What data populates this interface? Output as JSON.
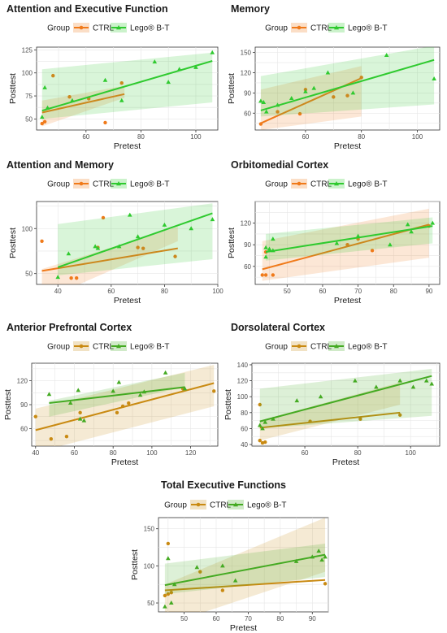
{
  "legend_title": "Group",
  "chart_data": [
    {
      "type": "scatter",
      "title": "Attention and Executive Function",
      "xlabel": "Pretest",
      "ylabel": "Posttest",
      "xlim": [
        42,
        108
      ],
      "ylim": [
        38,
        128
      ],
      "xticks": [
        60,
        80,
        100
      ],
      "yticks": [
        50,
        75,
        100,
        125
      ],
      "grid": true,
      "legend_position": "top",
      "series": [
        {
          "name": "CTRL",
          "color": "#f07a1a",
          "marker": "circle",
          "points": [
            [
              44,
              45
            ],
            [
              45,
              47
            ],
            [
              48,
              97
            ],
            [
              54,
              74
            ],
            [
              61,
              72
            ],
            [
              67,
              46
            ],
            [
              73,
              89
            ]
          ],
          "fit": [
            [
              44,
              57
            ],
            [
              74,
              77
            ]
          ],
          "band_low": [
            42,
            70
          ],
          "band_high": [
            73,
            86
          ]
        },
        {
          "name": "Lego® B-T",
          "color": "#2fca2f",
          "marker": "triangle",
          "points": [
            [
              44,
              52
            ],
            [
              45,
              84
            ],
            [
              46,
              62
            ],
            [
              55,
              70
            ],
            [
              67,
              92
            ],
            [
              73,
              70
            ],
            [
              85,
              112
            ],
            [
              90,
              90
            ],
            [
              94,
              104
            ],
            [
              100,
              106
            ],
            [
              106,
              122
            ]
          ],
          "fit": [
            [
              44,
              59
            ],
            [
              106,
              113
            ]
          ],
          "band_low": [
            50,
            104
          ],
          "band_high": [
            68,
            122
          ]
        }
      ]
    },
    {
      "type": "scatter",
      "title": "Memory",
      "xlabel": "Pretest",
      "ylabel": "Posttest",
      "xlim": [
        42,
        108
      ],
      "ylim": [
        35,
        158
      ],
      "xticks": [
        60,
        80,
        100
      ],
      "yticks": [
        60,
        90,
        120,
        150
      ],
      "grid": true,
      "legend_position": "top",
      "series": [
        {
          "name": "CTRL",
          "color": "#f07a1a",
          "marker": "circle",
          "points": [
            [
              44,
              44
            ],
            [
              50,
              62
            ],
            [
              58,
              59
            ],
            [
              60,
              95
            ],
            [
              70,
              84
            ],
            [
              75,
              86
            ],
            [
              80,
              113
            ]
          ],
          "fit": [
            [
              44,
              45
            ],
            [
              80,
              112
            ]
          ],
          "band_low": [
            35,
            95
          ],
          "band_high": [
            55,
            130
          ]
        },
        {
          "name": "Lego® B-T",
          "color": "#2fca2f",
          "marker": "triangle",
          "points": [
            [
              44,
              78
            ],
            [
              45,
              76
            ],
            [
              46,
              62
            ],
            [
              50,
              72
            ],
            [
              55,
              82
            ],
            [
              60,
              92
            ],
            [
              63,
              97
            ],
            [
              68,
              120
            ],
            [
              77,
              90
            ],
            [
              89,
              146
            ],
            [
              106,
              111
            ]
          ],
          "fit": [
            [
              44,
              64
            ],
            [
              106,
              139
            ]
          ],
          "band_low": [
            55,
            115
          ],
          "band_high": [
            73,
            160
          ]
        }
      ]
    },
    {
      "type": "scatter",
      "title": "Attention and Memory",
      "xlabel": "Pretest",
      "ylabel": "Posttest",
      "xlim": [
        32,
        100
      ],
      "ylim": [
        38,
        130
      ],
      "xticks": [
        40,
        60,
        80,
        100
      ],
      "yticks": [
        50,
        100
      ],
      "grid": true,
      "legend_position": "top",
      "series": [
        {
          "name": "CTRL",
          "color": "#f07a1a",
          "marker": "circle",
          "points": [
            [
              34,
              86
            ],
            [
              45,
              45
            ],
            [
              47,
              45
            ],
            [
              55,
              79
            ],
            [
              57,
              112
            ],
            [
              70,
              79
            ],
            [
              72,
              78
            ],
            [
              84,
              69
            ]
          ],
          "fit": [
            [
              34,
              53
            ],
            [
              85,
              78
            ]
          ],
          "band_low": [
            20,
            55
          ],
          "band_high": [
            86,
            102
          ]
        },
        {
          "name": "Lego® B-T",
          "color": "#2fca2f",
          "marker": "triangle",
          "points": [
            [
              40,
              46
            ],
            [
              44,
              72
            ],
            [
              54,
              80
            ],
            [
              55,
              78
            ],
            [
              63,
              80
            ],
            [
              67,
              115
            ],
            [
              70,
              91
            ],
            [
              80,
              104
            ],
            [
              90,
              100
            ],
            [
              98,
              110
            ]
          ],
          "fit": [
            [
              40,
              57
            ],
            [
              98,
              117
            ]
          ],
          "band_low": [
            48,
            105
          ],
          "band_high": [
            66,
            128
          ]
        }
      ]
    },
    {
      "type": "scatter",
      "title": "Orbitomedial Cortex",
      "xlabel": "Pretest",
      "ylabel": "Posttest",
      "xlim": [
        41,
        93
      ],
      "ylim": [
        35,
        150
      ],
      "xticks": [
        50,
        60,
        70,
        80,
        90
      ],
      "yticks": [
        60,
        90,
        120
      ],
      "grid": true,
      "legend_position": "top",
      "series": [
        {
          "name": "CTRL",
          "color": "#f07a1a",
          "marker": "circle",
          "points": [
            [
              43,
              48
            ],
            [
              44,
              80
            ],
            [
              44,
              48
            ],
            [
              46,
              48
            ],
            [
              67,
              90
            ],
            [
              70,
              98
            ],
            [
              74,
              82
            ],
            [
              90,
              116
            ]
          ],
          "fit": [
            [
              43,
              56
            ],
            [
              90,
              118
            ]
          ],
          "band_low": [
            40,
            95
          ],
          "band_high": [
            72,
            140
          ]
        },
        {
          "name": "Lego® B-T",
          "color": "#2fca2f",
          "marker": "triangle",
          "points": [
            [
              44,
              86
            ],
            [
              44,
              73
            ],
            [
              45,
              84
            ],
            [
              46,
              98
            ],
            [
              46,
              82
            ],
            [
              64,
              92
            ],
            [
              70,
              102
            ],
            [
              79,
              90
            ],
            [
              84,
              118
            ],
            [
              85,
              108
            ],
            [
              91,
              120
            ]
          ],
          "fit": [
            [
              44,
              80
            ],
            [
              91,
              116
            ]
          ],
          "band_low": [
            68,
            105
          ],
          "band_high": [
            92,
            128
          ]
        }
      ]
    },
    {
      "type": "scatter",
      "title": "Anterior Prefrontal Cortex",
      "xlabel": "Pretest",
      "ylabel": "Posttest",
      "xlim": [
        38,
        134
      ],
      "ylim": [
        38,
        142
      ],
      "xticks": [
        40,
        60,
        80,
        100,
        120
      ],
      "yticks": [
        60,
        90,
        120
      ],
      "grid": true,
      "legend_position": "top",
      "series": [
        {
          "name": "CTRL",
          "color": "#c98a12",
          "marker": "circle",
          "points": [
            [
              40,
              75
            ],
            [
              48,
              47
            ],
            [
              56,
              50
            ],
            [
              63,
              80
            ],
            [
              82,
              80
            ],
            [
              85,
              88
            ],
            [
              88,
              92
            ],
            [
              116,
              110
            ],
            [
              132,
              107
            ]
          ],
          "fit": [
            [
              40,
              58
            ],
            [
              132,
              117
            ]
          ],
          "band_low": [
            30,
            85
          ],
          "band_high": [
            88,
            140
          ]
        },
        {
          "name": "Lego® B-T",
          "color": "#44aa22",
          "marker": "triangle",
          "points": [
            [
              47,
              103
            ],
            [
              58,
              92
            ],
            [
              62,
              108
            ],
            [
              63,
              72
            ],
            [
              65,
              70
            ],
            [
              80,
              107
            ],
            [
              83,
              118
            ],
            [
              94,
              102
            ],
            [
              96,
              106
            ],
            [
              107,
              130
            ],
            [
              117,
              110
            ]
          ],
          "fit": [
            [
              47,
              92
            ],
            [
              117,
              112
            ]
          ],
          "band_low": [
            75,
            95
          ],
          "band_high": [
            112,
            130
          ]
        }
      ]
    },
    {
      "type": "scatter",
      "title": "Dorsolateral Cortex",
      "xlabel": "Pretest",
      "ylabel": "Posttest",
      "xlim": [
        40,
        111
      ],
      "ylim": [
        38,
        142
      ],
      "xticks": [
        60,
        80,
        100
      ],
      "yticks": [
        40,
        60,
        80,
        100,
        120,
        140
      ],
      "grid": true,
      "legend_position": "top",
      "series": [
        {
          "name": "CTRL",
          "color": "#c98a12",
          "marker": "circle",
          "points": [
            [
              43,
              90
            ],
            [
              43,
              45
            ],
            [
              44,
              42
            ],
            [
              45,
              43
            ],
            [
              62,
              69
            ],
            [
              81,
              72
            ],
            [
              96,
              77
            ]
          ],
          "fit": [
            [
              43,
              61
            ],
            [
              96,
              80
            ]
          ],
          "band_low": [
            45,
            70
          ],
          "band_high": [
            90,
            118
          ]
        },
        {
          "name": "Lego® B-T",
          "color": "#44aa22",
          "marker": "triangle",
          "points": [
            [
              43,
              64
            ],
            [
              44,
              60
            ],
            [
              45,
              68
            ],
            [
              48,
              72
            ],
            [
              57,
              95
            ],
            [
              66,
              100
            ],
            [
              79,
              120
            ],
            [
              87,
              112
            ],
            [
              96,
              120
            ],
            [
              101,
              112
            ],
            [
              106,
              120
            ],
            [
              108,
              116
            ]
          ],
          "fit": [
            [
              43,
              69
            ],
            [
              108,
              126
            ]
          ],
          "band_low": [
            60,
            110
          ],
          "band_high": [
            76,
            135
          ]
        }
      ]
    },
    {
      "type": "scatter",
      "title": "Total Executive Functions",
      "xlabel": "Pretest",
      "ylabel": "Posttest",
      "xlim": [
        42,
        95
      ],
      "ylim": [
        38,
        165
      ],
      "xticks": [
        50,
        60,
        70,
        80,
        90
      ],
      "yticks": [
        50,
        100,
        150
      ],
      "grid": true,
      "legend_position": "top",
      "series": [
        {
          "name": "CTRL",
          "color": "#c98a12",
          "marker": "circle",
          "points": [
            [
              44,
              60
            ],
            [
              45,
              130
            ],
            [
              45,
              62
            ],
            [
              46,
              64
            ],
            [
              55,
              92
            ],
            [
              62,
              67
            ],
            [
              94,
              76
            ]
          ],
          "fit": [
            [
              44,
              67
            ],
            [
              94,
              81
            ]
          ],
          "band_low": [
            20,
            75
          ],
          "band_high": [
            92,
            165
          ]
        },
        {
          "name": "Lego® B-T",
          "color": "#44aa22",
          "marker": "triangle",
          "points": [
            [
              44,
              45
            ],
            [
              45,
              110
            ],
            [
              46,
              50
            ],
            [
              47,
              75
            ],
            [
              54,
              98
            ],
            [
              62,
              100
            ],
            [
              66,
              80
            ],
            [
              85,
              106
            ],
            [
              90,
              112
            ],
            [
              92,
              120
            ],
            [
              93,
              108
            ],
            [
              94,
              112
            ]
          ],
          "fit": [
            [
              44,
              74
            ],
            [
              94,
              115
            ]
          ],
          "band_low": [
            62,
            103
          ],
          "band_high": [
            85,
            130
          ]
        }
      ]
    }
  ]
}
